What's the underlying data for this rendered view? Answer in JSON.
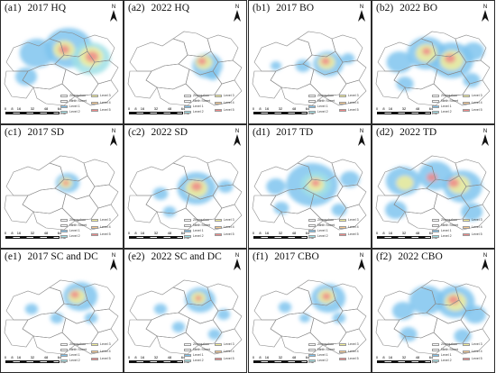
{
  "panels": [
    {
      "id": "a1",
      "label": "(a1)",
      "year": "2017",
      "category": "HQ"
    },
    {
      "id": "a2",
      "label": "(a2)",
      "year": "2022",
      "category": "HQ"
    },
    {
      "id": "b1",
      "label": "(b1)",
      "year": "2017",
      "category": "BO"
    },
    {
      "id": "b2",
      "label": "(b2)",
      "year": "2022",
      "category": "BO"
    },
    {
      "id": "c1",
      "label": "(c1)",
      "year": "2017",
      "category": "SD"
    },
    {
      "id": "c2",
      "label": "(c2)",
      "year": "2022",
      "category": "SD"
    },
    {
      "id": "d1",
      "label": "(d1)",
      "year": "2017",
      "category": "TD"
    },
    {
      "id": "d2",
      "label": "(d2)",
      "year": "2022",
      "category": "TD"
    },
    {
      "id": "e1",
      "label": "(e1)",
      "year": "2017",
      "category": "SC and DC"
    },
    {
      "id": "e2",
      "label": "(e2)",
      "year": "2022",
      "category": "SC and DC"
    },
    {
      "id": "f1",
      "label": "(f1)",
      "year": "2017",
      "category": "CBO"
    },
    {
      "id": "f2",
      "label": "(f2)",
      "year": "2022",
      "category": "CBO"
    }
  ],
  "map_common": {
    "north_label": "N",
    "scale_ticks": [
      "0",
      "8",
      "16",
      "32",
      "48",
      "64"
    ],
    "scale_unit": "KM",
    "legend": [
      {
        "label": "Zhengzhou",
        "color": "#ffffff"
      },
      {
        "label": "Ninth Street",
        "color": "#ffffff"
      },
      {
        "label": "Level 1",
        "color": "#7fc4ef"
      },
      {
        "label": "Level 2",
        "color": "#9fe0e6"
      },
      {
        "label": "Level 3",
        "color": "#f3ef9a"
      },
      {
        "label": "Level 4",
        "color": "#f7c98f"
      },
      {
        "label": "Level 5",
        "color": "#f08a8a"
      }
    ]
  }
}
